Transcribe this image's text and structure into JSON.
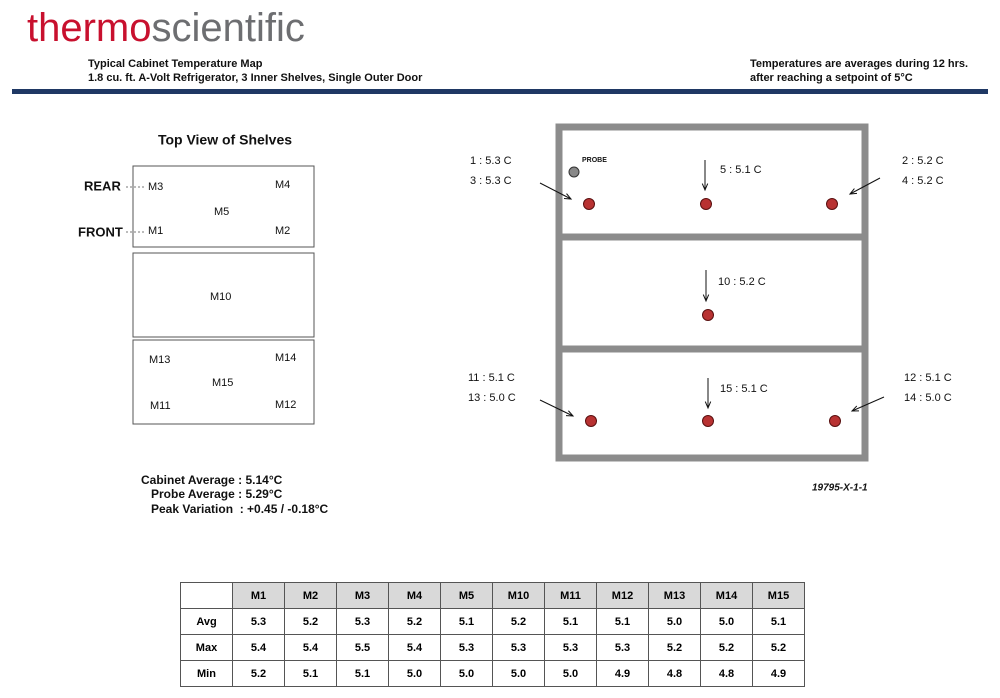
{
  "header": {
    "logo": [
      "thermo",
      "scientific"
    ],
    "left": [
      "Typical Cabinet Temperature Map",
      "1.8 cu. ft. A-Volt Refrigerator, 3 Inner Shelves, Single Outer Door"
    ],
    "right": [
      "Temperatures are averages during 12 hrs.",
      "after reaching a setpoint of 5°C"
    ]
  },
  "top_view": {
    "title": "Top View of Shelves",
    "rear": "REAR",
    "front": "FRONT",
    "positions": [
      "M3",
      "M4",
      "M5",
      "M1",
      "M2",
      "M10",
      "M13",
      "M14",
      "M15",
      "M11",
      "M12"
    ]
  },
  "summary": [
    "Cabinet Average : 5.14°C",
    "Probe Average : 5.29°C",
    "Peak Variation  : +0.45 / -0.18°C"
  ],
  "cabinet": {
    "probe": "PROBE",
    "readings": [
      "1 : 5.3 C",
      "3 : 5.3 C",
      "5 : 5.1 C",
      "2 : 5.2 C",
      "4 : 5.2 C",
      "10 : 5.2 C",
      "11 : 5.1 C",
      "13 : 5.0 C",
      "15 : 5.1 C",
      "12 : 5.1 C",
      "14 : 5.0 C"
    ],
    "drawing_number": "19795-X-1-1"
  },
  "table": {
    "columns": [
      "M1",
      "M2",
      "M3",
      "M4",
      "M5",
      "M10",
      "M11",
      "M12",
      "M13",
      "M14",
      "M15"
    ],
    "rows": [
      {
        "label": "Avg",
        "cells": [
          "5.3",
          "5.2",
          "5.3",
          "5.2",
          "5.1",
          "5.2",
          "5.1",
          "5.1",
          "5.0",
          "5.0",
          "5.1"
        ]
      },
      {
        "label": "Max",
        "cells": [
          "5.4",
          "5.4",
          "5.5",
          "5.4",
          "5.3",
          "5.3",
          "5.3",
          "5.3",
          "5.2",
          "5.2",
          "5.2"
        ]
      },
      {
        "label": "Min",
        "cells": [
          "5.2",
          "5.1",
          "5.1",
          "5.0",
          "5.0",
          "5.0",
          "5.0",
          "4.9",
          "4.8",
          "4.8",
          "4.9"
        ]
      }
    ]
  }
}
